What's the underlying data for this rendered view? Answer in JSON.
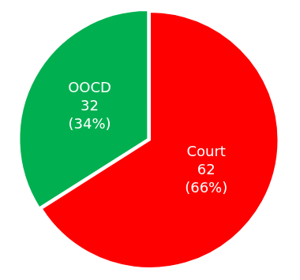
{
  "chart_data": {
    "type": "pie",
    "categories": [
      "Court",
      "OOCD"
    ],
    "values": [
      62,
      32
    ],
    "percentages": [
      66,
      34
    ],
    "percentage_labels": [
      "(66%)",
      "(34%)"
    ],
    "colors": [
      "#ff0000",
      "#00b050"
    ],
    "data_labels": true
  }
}
